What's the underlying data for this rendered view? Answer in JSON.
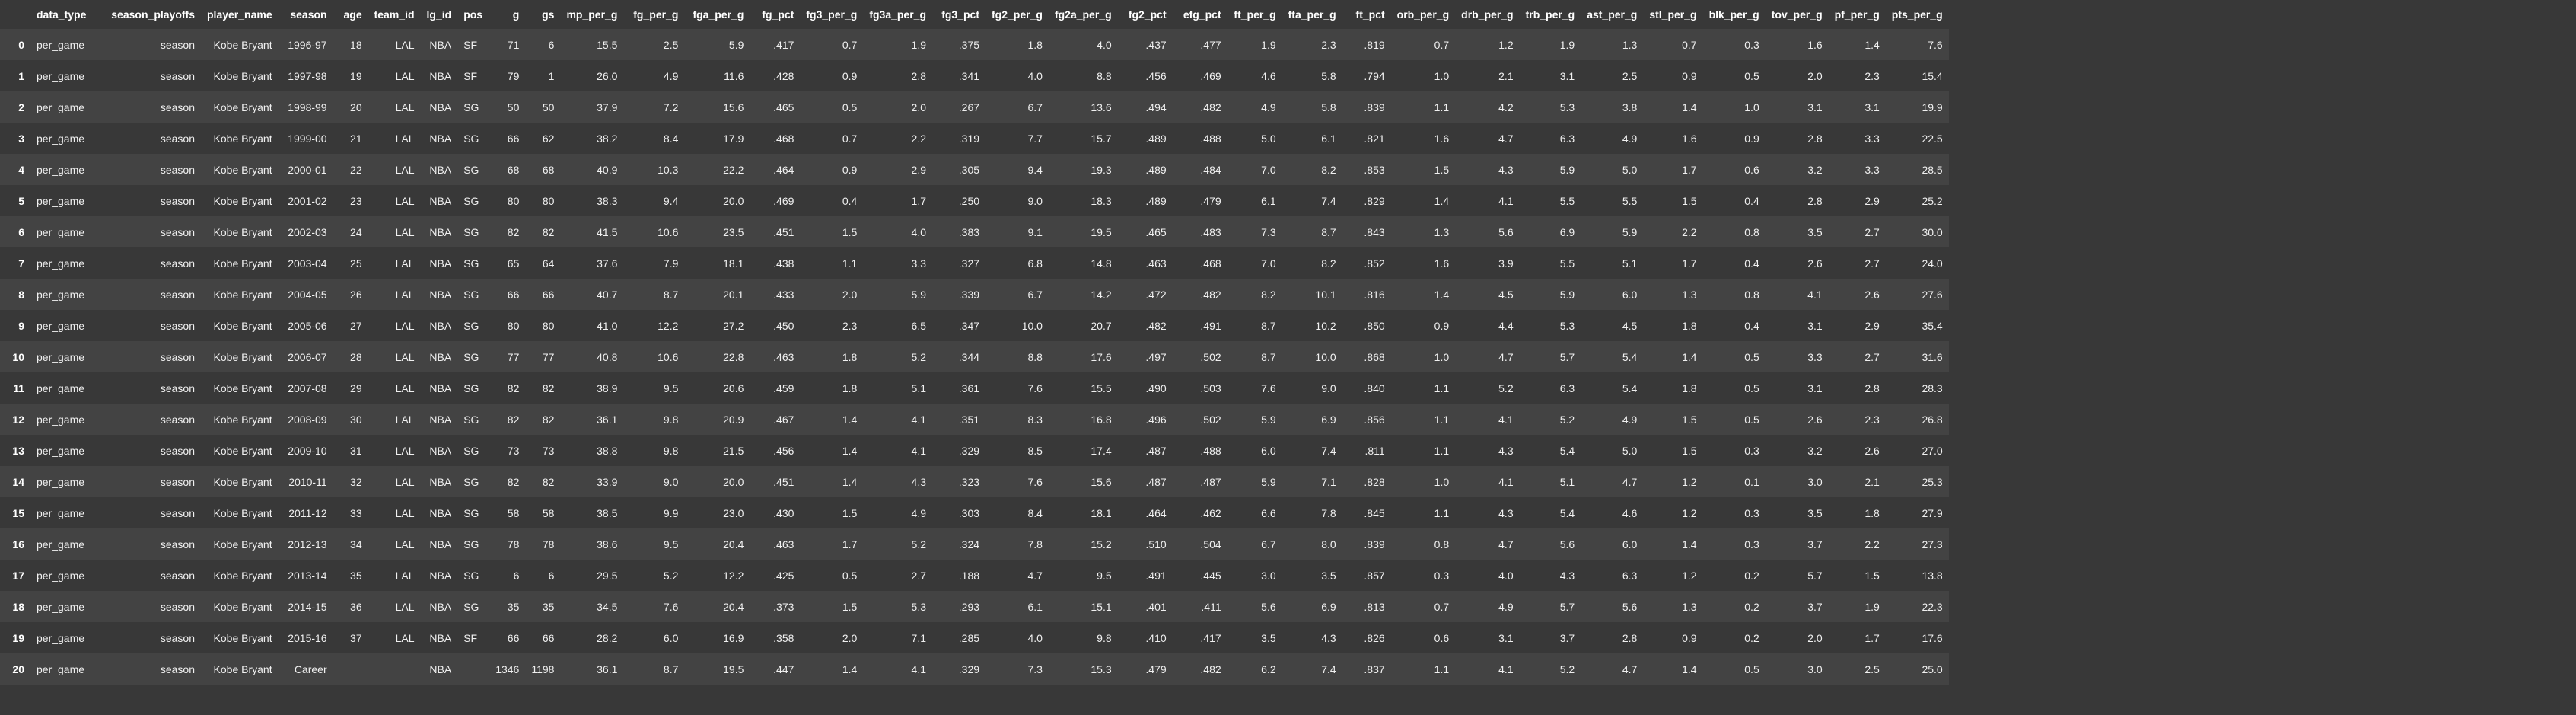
{
  "columns": [
    "",
    "data_type",
    "season_playoffs",
    "player_name",
    "season",
    "age",
    "team_id",
    "lg_id",
    "pos",
    "g",
    "gs",
    "mp_per_g",
    "fg_per_g",
    "fga_per_g",
    "fg_pct",
    "fg3_per_g",
    "fg3a_per_g",
    "fg3_pct",
    "fg2_per_g",
    "fg2a_per_g",
    "fg2_pct",
    "efg_pct",
    "ft_per_g",
    "fta_per_g",
    "ft_pct",
    "orb_per_g",
    "drb_per_g",
    "trb_per_g",
    "ast_per_g",
    "stl_per_g",
    "blk_per_g",
    "tov_per_g",
    "pf_per_g",
    "pts_per_g"
  ],
  "rows": [
    [
      "0",
      "per_game",
      "season",
      "Kobe Bryant",
      "1996-97",
      "18",
      "LAL",
      "NBA",
      "SF",
      "71",
      "6",
      "15.5",
      "2.5",
      "5.9",
      ".417",
      "0.7",
      "1.9",
      ".375",
      "1.8",
      "4.0",
      ".437",
      ".477",
      "1.9",
      "2.3",
      ".819",
      "0.7",
      "1.2",
      "1.9",
      "1.3",
      "0.7",
      "0.3",
      "1.6",
      "1.4",
      "7.6"
    ],
    [
      "1",
      "per_game",
      "season",
      "Kobe Bryant",
      "1997-98",
      "19",
      "LAL",
      "NBA",
      "SF",
      "79",
      "1",
      "26.0",
      "4.9",
      "11.6",
      ".428",
      "0.9",
      "2.8",
      ".341",
      "4.0",
      "8.8",
      ".456",
      ".469",
      "4.6",
      "5.8",
      ".794",
      "1.0",
      "2.1",
      "3.1",
      "2.5",
      "0.9",
      "0.5",
      "2.0",
      "2.3",
      "15.4"
    ],
    [
      "2",
      "per_game",
      "season",
      "Kobe Bryant",
      "1998-99",
      "20",
      "LAL",
      "NBA",
      "SG",
      "50",
      "50",
      "37.9",
      "7.2",
      "15.6",
      ".465",
      "0.5",
      "2.0",
      ".267",
      "6.7",
      "13.6",
      ".494",
      ".482",
      "4.9",
      "5.8",
      ".839",
      "1.1",
      "4.2",
      "5.3",
      "3.8",
      "1.4",
      "1.0",
      "3.1",
      "3.1",
      "19.9"
    ],
    [
      "3",
      "per_game",
      "season",
      "Kobe Bryant",
      "1999-00",
      "21",
      "LAL",
      "NBA",
      "SG",
      "66",
      "62",
      "38.2",
      "8.4",
      "17.9",
      ".468",
      "0.7",
      "2.2",
      ".319",
      "7.7",
      "15.7",
      ".489",
      ".488",
      "5.0",
      "6.1",
      ".821",
      "1.6",
      "4.7",
      "6.3",
      "4.9",
      "1.6",
      "0.9",
      "2.8",
      "3.3",
      "22.5"
    ],
    [
      "4",
      "per_game",
      "season",
      "Kobe Bryant",
      "2000-01",
      "22",
      "LAL",
      "NBA",
      "SG",
      "68",
      "68",
      "40.9",
      "10.3",
      "22.2",
      ".464",
      "0.9",
      "2.9",
      ".305",
      "9.4",
      "19.3",
      ".489",
      ".484",
      "7.0",
      "8.2",
      ".853",
      "1.5",
      "4.3",
      "5.9",
      "5.0",
      "1.7",
      "0.6",
      "3.2",
      "3.3",
      "28.5"
    ],
    [
      "5",
      "per_game",
      "season",
      "Kobe Bryant",
      "2001-02",
      "23",
      "LAL",
      "NBA",
      "SG",
      "80",
      "80",
      "38.3",
      "9.4",
      "20.0",
      ".469",
      "0.4",
      "1.7",
      ".250",
      "9.0",
      "18.3",
      ".489",
      ".479",
      "6.1",
      "7.4",
      ".829",
      "1.4",
      "4.1",
      "5.5",
      "5.5",
      "1.5",
      "0.4",
      "2.8",
      "2.9",
      "25.2"
    ],
    [
      "6",
      "per_game",
      "season",
      "Kobe Bryant",
      "2002-03",
      "24",
      "LAL",
      "NBA",
      "SG",
      "82",
      "82",
      "41.5",
      "10.6",
      "23.5",
      ".451",
      "1.5",
      "4.0",
      ".383",
      "9.1",
      "19.5",
      ".465",
      ".483",
      "7.3",
      "8.7",
      ".843",
      "1.3",
      "5.6",
      "6.9",
      "5.9",
      "2.2",
      "0.8",
      "3.5",
      "2.7",
      "30.0"
    ],
    [
      "7",
      "per_game",
      "season",
      "Kobe Bryant",
      "2003-04",
      "25",
      "LAL",
      "NBA",
      "SG",
      "65",
      "64",
      "37.6",
      "7.9",
      "18.1",
      ".438",
      "1.1",
      "3.3",
      ".327",
      "6.8",
      "14.8",
      ".463",
      ".468",
      "7.0",
      "8.2",
      ".852",
      "1.6",
      "3.9",
      "5.5",
      "5.1",
      "1.7",
      "0.4",
      "2.6",
      "2.7",
      "24.0"
    ],
    [
      "8",
      "per_game",
      "season",
      "Kobe Bryant",
      "2004-05",
      "26",
      "LAL",
      "NBA",
      "SG",
      "66",
      "66",
      "40.7",
      "8.7",
      "20.1",
      ".433",
      "2.0",
      "5.9",
      ".339",
      "6.7",
      "14.2",
      ".472",
      ".482",
      "8.2",
      "10.1",
      ".816",
      "1.4",
      "4.5",
      "5.9",
      "6.0",
      "1.3",
      "0.8",
      "4.1",
      "2.6",
      "27.6"
    ],
    [
      "9",
      "per_game",
      "season",
      "Kobe Bryant",
      "2005-06",
      "27",
      "LAL",
      "NBA",
      "SG",
      "80",
      "80",
      "41.0",
      "12.2",
      "27.2",
      ".450",
      "2.3",
      "6.5",
      ".347",
      "10.0",
      "20.7",
      ".482",
      ".491",
      "8.7",
      "10.2",
      ".850",
      "0.9",
      "4.4",
      "5.3",
      "4.5",
      "1.8",
      "0.4",
      "3.1",
      "2.9",
      "35.4"
    ],
    [
      "10",
      "per_game",
      "season",
      "Kobe Bryant",
      "2006-07",
      "28",
      "LAL",
      "NBA",
      "SG",
      "77",
      "77",
      "40.8",
      "10.6",
      "22.8",
      ".463",
      "1.8",
      "5.2",
      ".344",
      "8.8",
      "17.6",
      ".497",
      ".502",
      "8.7",
      "10.0",
      ".868",
      "1.0",
      "4.7",
      "5.7",
      "5.4",
      "1.4",
      "0.5",
      "3.3",
      "2.7",
      "31.6"
    ],
    [
      "11",
      "per_game",
      "season",
      "Kobe Bryant",
      "2007-08",
      "29",
      "LAL",
      "NBA",
      "SG",
      "82",
      "82",
      "38.9",
      "9.5",
      "20.6",
      ".459",
      "1.8",
      "5.1",
      ".361",
      "7.6",
      "15.5",
      ".490",
      ".503",
      "7.6",
      "9.0",
      ".840",
      "1.1",
      "5.2",
      "6.3",
      "5.4",
      "1.8",
      "0.5",
      "3.1",
      "2.8",
      "28.3"
    ],
    [
      "12",
      "per_game",
      "season",
      "Kobe Bryant",
      "2008-09",
      "30",
      "LAL",
      "NBA",
      "SG",
      "82",
      "82",
      "36.1",
      "9.8",
      "20.9",
      ".467",
      "1.4",
      "4.1",
      ".351",
      "8.3",
      "16.8",
      ".496",
      ".502",
      "5.9",
      "6.9",
      ".856",
      "1.1",
      "4.1",
      "5.2",
      "4.9",
      "1.5",
      "0.5",
      "2.6",
      "2.3",
      "26.8"
    ],
    [
      "13",
      "per_game",
      "season",
      "Kobe Bryant",
      "2009-10",
      "31",
      "LAL",
      "NBA",
      "SG",
      "73",
      "73",
      "38.8",
      "9.8",
      "21.5",
      ".456",
      "1.4",
      "4.1",
      ".329",
      "8.5",
      "17.4",
      ".487",
      ".488",
      "6.0",
      "7.4",
      ".811",
      "1.1",
      "4.3",
      "5.4",
      "5.0",
      "1.5",
      "0.3",
      "3.2",
      "2.6",
      "27.0"
    ],
    [
      "14",
      "per_game",
      "season",
      "Kobe Bryant",
      "2010-11",
      "32",
      "LAL",
      "NBA",
      "SG",
      "82",
      "82",
      "33.9",
      "9.0",
      "20.0",
      ".451",
      "1.4",
      "4.3",
      ".323",
      "7.6",
      "15.6",
      ".487",
      ".487",
      "5.9",
      "7.1",
      ".828",
      "1.0",
      "4.1",
      "5.1",
      "4.7",
      "1.2",
      "0.1",
      "3.0",
      "2.1",
      "25.3"
    ],
    [
      "15",
      "per_game",
      "season",
      "Kobe Bryant",
      "2011-12",
      "33",
      "LAL",
      "NBA",
      "SG",
      "58",
      "58",
      "38.5",
      "9.9",
      "23.0",
      ".430",
      "1.5",
      "4.9",
      ".303",
      "8.4",
      "18.1",
      ".464",
      ".462",
      "6.6",
      "7.8",
      ".845",
      "1.1",
      "4.3",
      "5.4",
      "4.6",
      "1.2",
      "0.3",
      "3.5",
      "1.8",
      "27.9"
    ],
    [
      "16",
      "per_game",
      "season",
      "Kobe Bryant",
      "2012-13",
      "34",
      "LAL",
      "NBA",
      "SG",
      "78",
      "78",
      "38.6",
      "9.5",
      "20.4",
      ".463",
      "1.7",
      "5.2",
      ".324",
      "7.8",
      "15.2",
      ".510",
      ".504",
      "6.7",
      "8.0",
      ".839",
      "0.8",
      "4.7",
      "5.6",
      "6.0",
      "1.4",
      "0.3",
      "3.7",
      "2.2",
      "27.3"
    ],
    [
      "17",
      "per_game",
      "season",
      "Kobe Bryant",
      "2013-14",
      "35",
      "LAL",
      "NBA",
      "SG",
      "6",
      "6",
      "29.5",
      "5.2",
      "12.2",
      ".425",
      "0.5",
      "2.7",
      ".188",
      "4.7",
      "9.5",
      ".491",
      ".445",
      "3.0",
      "3.5",
      ".857",
      "0.3",
      "4.0",
      "4.3",
      "6.3",
      "1.2",
      "0.2",
      "5.7",
      "1.5",
      "13.8"
    ],
    [
      "18",
      "per_game",
      "season",
      "Kobe Bryant",
      "2014-15",
      "36",
      "LAL",
      "NBA",
      "SG",
      "35",
      "35",
      "34.5",
      "7.6",
      "20.4",
      ".373",
      "1.5",
      "5.3",
      ".293",
      "6.1",
      "15.1",
      ".401",
      ".411",
      "5.6",
      "6.9",
      ".813",
      "0.7",
      "4.9",
      "5.7",
      "5.6",
      "1.3",
      "0.2",
      "3.7",
      "1.9",
      "22.3"
    ],
    [
      "19",
      "per_game",
      "season",
      "Kobe Bryant",
      "2015-16",
      "37",
      "LAL",
      "NBA",
      "SF",
      "66",
      "66",
      "28.2",
      "6.0",
      "16.9",
      ".358",
      "2.0",
      "7.1",
      ".285",
      "4.0",
      "9.8",
      ".410",
      ".417",
      "3.5",
      "4.3",
      ".826",
      "0.6",
      "3.1",
      "3.7",
      "2.8",
      "0.9",
      "0.2",
      "2.0",
      "1.7",
      "17.6"
    ],
    [
      "20",
      "per_game",
      "season",
      "Kobe Bryant",
      "Career",
      "",
      "",
      "NBA",
      "",
      "1346",
      "1198",
      "36.1",
      "8.7",
      "19.5",
      ".447",
      "1.4",
      "4.1",
      ".329",
      "7.3",
      "15.3",
      ".479",
      ".482",
      "6.2",
      "7.4",
      ".837",
      "1.1",
      "4.1",
      "5.2",
      "4.7",
      "1.4",
      "0.5",
      "3.0",
      "2.5",
      "25.0"
    ]
  ]
}
